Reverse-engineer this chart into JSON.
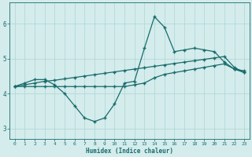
{
  "xlabel": "Humidex (Indice chaleur)",
  "bg_color": "#d4ecec",
  "line_color": "#1a6b6b",
  "grid_color": "#b0d4d4",
  "xlim": [
    -0.5,
    23.5
  ],
  "ylim": [
    2.7,
    6.6
  ],
  "yticks": [
    3,
    4,
    5,
    6
  ],
  "xticks": [
    0,
    1,
    2,
    3,
    4,
    5,
    6,
    7,
    8,
    9,
    10,
    11,
    12,
    13,
    14,
    15,
    16,
    17,
    18,
    19,
    20,
    21,
    22,
    23
  ],
  "line1_x": [
    0,
    1,
    2,
    3,
    4,
    5,
    6,
    7,
    8,
    9,
    10,
    11,
    12,
    13,
    14,
    15,
    16,
    17,
    18,
    19,
    20,
    21,
    22,
    23
  ],
  "line1_y": [
    4.2,
    4.25,
    4.3,
    4.35,
    4.38,
    4.42,
    4.46,
    4.5,
    4.54,
    4.58,
    4.62,
    4.66,
    4.7,
    4.74,
    4.78,
    4.82,
    4.86,
    4.9,
    4.94,
    4.98,
    5.02,
    5.06,
    4.75,
    4.6
  ],
  "line2_x": [
    0,
    1,
    2,
    3,
    4,
    5,
    6,
    7,
    8,
    9,
    10,
    11,
    12,
    13,
    14,
    15,
    16,
    17,
    18,
    19,
    20,
    21,
    22,
    23
  ],
  "line2_y": [
    4.2,
    4.3,
    4.4,
    4.4,
    4.25,
    4.0,
    3.65,
    3.3,
    3.2,
    3.3,
    3.7,
    4.3,
    4.35,
    5.3,
    6.2,
    5.9,
    5.2,
    5.25,
    5.3,
    5.25,
    5.2,
    4.9,
    4.7,
    4.6
  ],
  "line3_x": [
    0,
    1,
    2,
    3,
    4,
    5,
    6,
    7,
    8,
    9,
    10,
    11,
    12,
    13,
    14,
    15,
    16,
    17,
    18,
    19,
    20,
    21,
    22,
    23
  ],
  "line3_y": [
    4.2,
    4.2,
    4.2,
    4.2,
    4.2,
    4.2,
    4.2,
    4.2,
    4.2,
    4.2,
    4.2,
    4.2,
    4.25,
    4.3,
    4.45,
    4.55,
    4.6,
    4.65,
    4.7,
    4.75,
    4.8,
    4.85,
    4.7,
    4.65
  ]
}
